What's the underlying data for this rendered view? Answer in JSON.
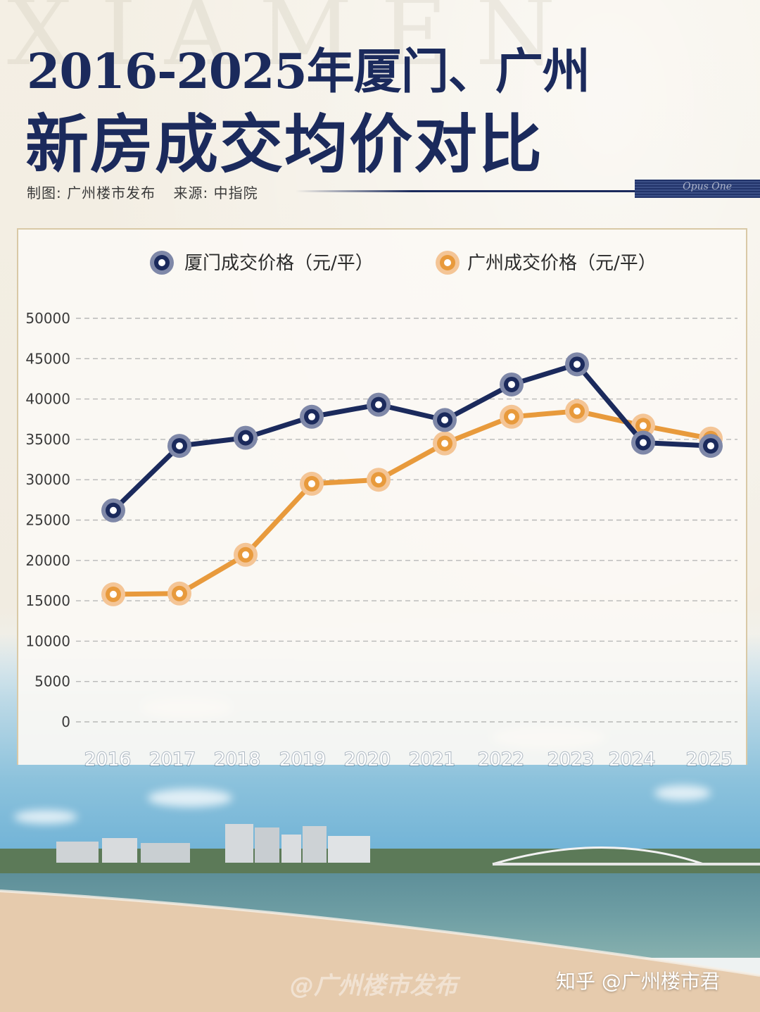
{
  "header": {
    "title_line1": "2016-2025年厦门、广州",
    "title_line2": "新房成交均价对比",
    "credit_maker": "制图: 广州楼市发布",
    "credit_source": "来源: 中指院"
  },
  "decor": {
    "bg_watermark": "XIAMEN",
    "signature": "Opus One"
  },
  "footer": {
    "platform_watermark": "知乎 @广州楼市君",
    "faded_watermark": "@广州楼市发布"
  },
  "colors": {
    "xiamen": "#1b2a5c",
    "xiamen_ring": "#7f88a8",
    "guangzhou": "#e89a3c",
    "guangzhou_ring": "#f4c596"
  },
  "chart_data": {
    "type": "line",
    "x": [
      "2016",
      "2017",
      "2018",
      "2019",
      "2020",
      "2021",
      "2022",
      "2023",
      "2024",
      "2025"
    ],
    "series": [
      {
        "name": "厦门成交价格（元/平）",
        "values": [
          26200,
          34200,
          35200,
          37800,
          39300,
          37400,
          41800,
          44300,
          34600,
          34200
        ]
      },
      {
        "name": "广州成交价格（元/平）",
        "values": [
          15800,
          15900,
          20700,
          29500,
          30000,
          34500,
          37800,
          38500,
          36700,
          35100
        ]
      }
    ],
    "y_ticks": [
      "50000",
      "45000",
      "40000",
      "35000",
      "30000",
      "25000",
      "20000",
      "15000",
      "10000",
      "5000",
      "0"
    ],
    "ylim": [
      0,
      50000
    ],
    "grid": true,
    "legend_position": "top-center"
  }
}
